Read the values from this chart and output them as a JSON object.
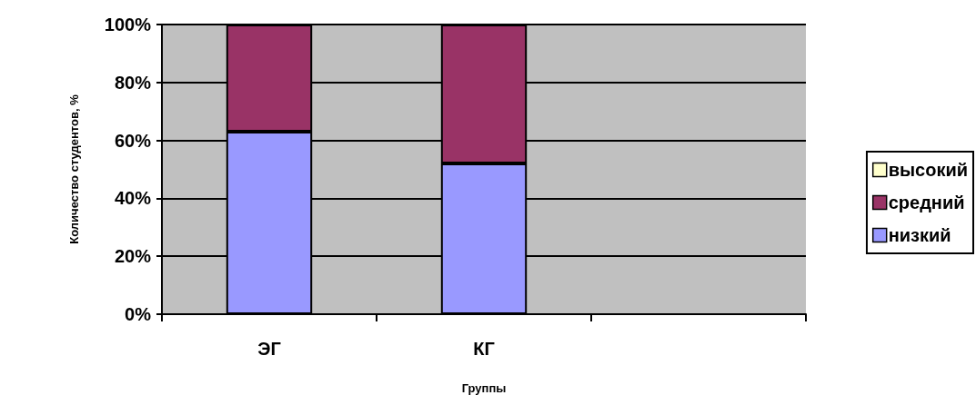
{
  "chart_data": {
    "type": "bar",
    "stacked": true,
    "xlabel": "Группы",
    "ylabel": "Количество студентов, %",
    "categories": [
      "ЭГ",
      "КГ",
      null
    ],
    "series": [
      {
        "name": "низкий",
        "color": "#9999ff",
        "values": [
          63,
          52,
          null
        ]
      },
      {
        "name": "средний",
        "color": "#993366",
        "values": [
          37,
          48,
          null
        ]
      },
      {
        "name": "высокий",
        "color": "#ffffcc",
        "values": [
          0,
          0,
          null
        ]
      }
    ],
    "ylim": [
      0,
      100
    ],
    "yticks": [
      {
        "value": 0,
        "label": "0%"
      },
      {
        "value": 20,
        "label": "20%"
      },
      {
        "value": 40,
        "label": "40%"
      },
      {
        "value": 60,
        "label": "60%"
      },
      {
        "value": 80,
        "label": "80%"
      },
      {
        "value": 100,
        "label": "100%"
      }
    ],
    "grid": "y",
    "legend": "right"
  }
}
